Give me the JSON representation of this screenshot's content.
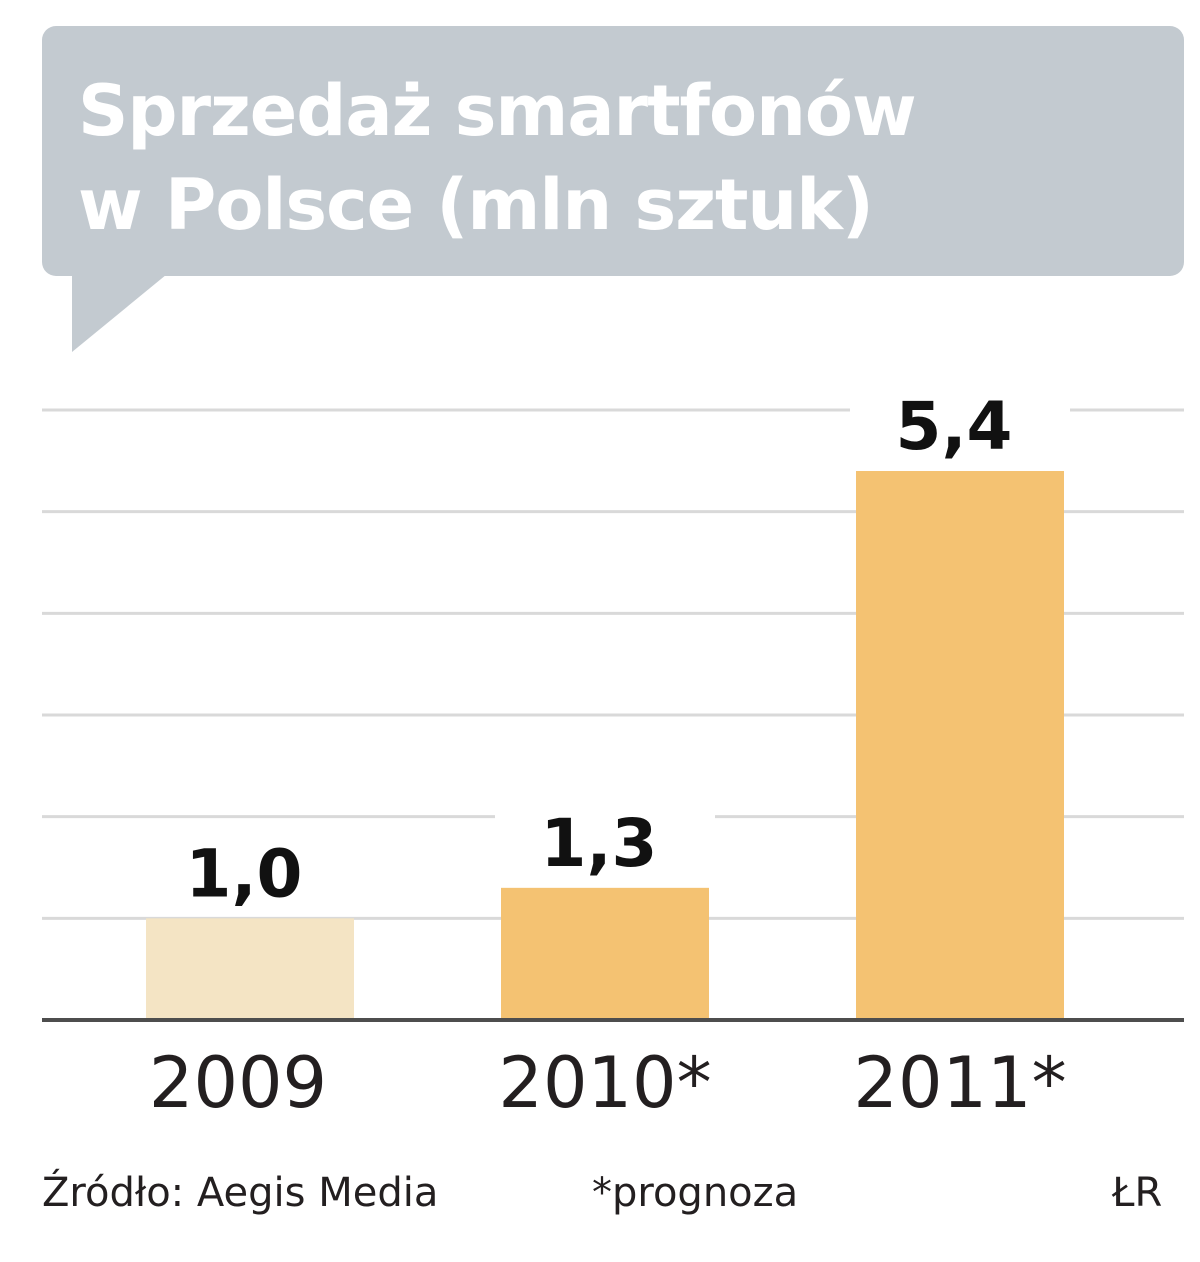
{
  "title": {
    "line1": "Sprzedaż smartfonów",
    "line2": "w Polsce (mln sztuk)"
  },
  "chart_data": {
    "type": "bar",
    "categories": [
      "2009",
      "2010*",
      "2011*"
    ],
    "values": [
      1.0,
      1.3,
      5.4
    ],
    "value_labels": [
      "1,0",
      "1,3",
      "5,4"
    ],
    "ylim": [
      0,
      6
    ],
    "grid": true,
    "bar_colors": [
      "#f4e4c4",
      "#f4c272",
      "#f4c272"
    ],
    "grid_color": "#d9d9d9",
    "axis_color": "#4d4d4d"
  },
  "footer": {
    "source": "Źródło: Aegis Media",
    "note": "*prognoza",
    "credit": "ŁR"
  },
  "colors": {
    "title_background": "#c3cad0",
    "title_text": "#ffffff"
  }
}
